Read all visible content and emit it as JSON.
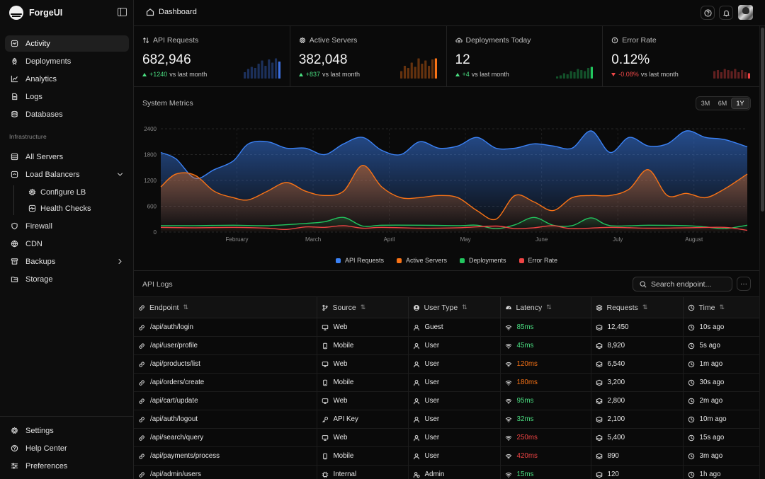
{
  "brand": {
    "name": "ForgeUI"
  },
  "sidebar": {
    "main_items": [
      {
        "label": "Activity",
        "icon": "activity-icon",
        "active": true
      },
      {
        "label": "Deployments",
        "icon": "rocket-icon"
      },
      {
        "label": "Analytics",
        "icon": "chart-icon"
      },
      {
        "label": "Logs",
        "icon": "file-icon"
      },
      {
        "label": "Databases",
        "icon": "database-icon"
      }
    ],
    "section_label": "Infrastructure",
    "infra_items": [
      {
        "label": "All Servers",
        "icon": "server-icon"
      },
      {
        "label": "Load Balancers",
        "icon": "balancer-icon",
        "expanded": true
      },
      {
        "label": "Firewall",
        "icon": "shield-icon"
      },
      {
        "label": "CDN",
        "icon": "globe-icon"
      },
      {
        "label": "Backups",
        "icon": "archive-icon"
      },
      {
        "label": "Storage",
        "icon": "folder-icon"
      }
    ],
    "lb_sub_items": [
      {
        "label": "Configure LB",
        "icon": "gear-icon"
      },
      {
        "label": "Health Checks",
        "icon": "pulse-icon"
      }
    ],
    "bottom_items": [
      {
        "label": "Settings",
        "icon": "gear-icon"
      },
      {
        "label": "Help Center",
        "icon": "help-icon"
      },
      {
        "label": "Preferences",
        "icon": "sliders-icon"
      }
    ]
  },
  "header": {
    "title": "Dashboard"
  },
  "stats": [
    {
      "label": "API Requests",
      "value": "682,946",
      "delta": "+1240",
      "delta_text": "vs last month",
      "trend": "up",
      "color": "#3b6fe0",
      "bars": [
        0.3,
        0.45,
        0.55,
        0.5,
        0.7,
        0.85,
        0.6,
        0.9,
        0.75,
        0.95,
        0.8
      ]
    },
    {
      "label": "Active Servers",
      "value": "382,048",
      "delta": "+837",
      "delta_text": "vs last month",
      "trend": "up",
      "color": "#f97316",
      "bars": [
        0.35,
        0.6,
        0.5,
        0.75,
        0.55,
        0.95,
        0.7,
        0.85,
        0.6,
        0.9,
        0.95
      ]
    },
    {
      "label": "Deployments Today",
      "value": "12",
      "delta": "+4",
      "delta_text": "vs last month",
      "trend": "up",
      "color": "#22c55e",
      "bars": [
        0.1,
        0.15,
        0.25,
        0.2,
        0.35,
        0.3,
        0.45,
        0.4,
        0.35,
        0.5,
        0.55
      ]
    },
    {
      "label": "Error Rate",
      "value": "0.12%",
      "delta": "-0.08%",
      "delta_text": "vs last month",
      "trend": "down",
      "color": "#ef4444",
      "bars": [
        0.35,
        0.4,
        0.3,
        0.45,
        0.4,
        0.35,
        0.45,
        0.3,
        0.4,
        0.3,
        0.25
      ]
    }
  ],
  "metrics": {
    "title": "System Metrics",
    "ranges": [
      "3M",
      "6M",
      "1Y"
    ],
    "active_range": "1Y"
  },
  "chart_data": {
    "type": "area",
    "title": "System Metrics",
    "xlabel": "",
    "ylabel": "",
    "ylim": [
      0,
      2400
    ],
    "yticks": [
      0,
      600,
      1200,
      1800,
      2400
    ],
    "x_tick_labels": [
      "February",
      "March",
      "April",
      "May",
      "June",
      "July",
      "August"
    ],
    "x_range": [
      0,
      7.7
    ],
    "legend_position": "bottom",
    "series": [
      {
        "name": "API Requests",
        "color": "#3b82f6",
        "x": [
          0,
          0.2,
          0.45,
          0.7,
          0.95,
          1.15,
          1.4,
          1.65,
          1.9,
          2.15,
          2.4,
          2.65,
          2.9,
          3.15,
          3.4,
          3.65,
          3.9,
          4.15,
          4.4,
          4.65,
          4.9,
          5.15,
          5.4,
          5.65,
          5.9,
          6.15,
          6.4,
          6.65,
          6.9,
          7.15,
          7.4,
          7.7
        ],
        "y": [
          1850,
          1700,
          1250,
          1450,
          1650,
          2050,
          2100,
          1950,
          1950,
          1800,
          2050,
          2200,
          1900,
          1800,
          2100,
          1950,
          2000,
          2200,
          1950,
          1950,
          2050,
          2000,
          1950,
          2350,
          1850,
          2200,
          2000,
          2050,
          2350,
          2200,
          2150,
          1980
        ]
      },
      {
        "name": "Active Servers",
        "color": "#f97316",
        "x": [
          0,
          0.2,
          0.45,
          0.7,
          0.95,
          1.15,
          1.4,
          1.65,
          1.9,
          2.15,
          2.4,
          2.65,
          2.9,
          3.15,
          3.4,
          3.65,
          3.9,
          4.15,
          4.4,
          4.65,
          4.9,
          5.15,
          5.4,
          5.65,
          5.9,
          6.15,
          6.4,
          6.65,
          6.9,
          7.15,
          7.4,
          7.7
        ],
        "y": [
          1050,
          1350,
          1320,
          950,
          800,
          750,
          950,
          1150,
          950,
          850,
          950,
          1550,
          1050,
          800,
          800,
          850,
          800,
          500,
          300,
          850,
          700,
          500,
          800,
          850,
          850,
          1000,
          1450,
          850,
          900,
          800,
          1000,
          1350
        ]
      },
      {
        "name": "Deployments",
        "color": "#22c55e",
        "x": [
          0,
          0.45,
          0.95,
          1.4,
          1.9,
          2.15,
          2.4,
          2.65,
          2.9,
          3.4,
          3.9,
          4.15,
          4.4,
          4.65,
          4.9,
          5.15,
          5.4,
          5.65,
          5.9,
          6.4,
          6.9,
          7.15,
          7.4,
          7.7
        ],
        "y": [
          150,
          150,
          160,
          150,
          200,
          240,
          340,
          140,
          160,
          160,
          150,
          160,
          80,
          170,
          340,
          160,
          150,
          330,
          150,
          160,
          150,
          120,
          80,
          160
        ]
      },
      {
        "name": "Error Rate",
        "color": "#ef4444",
        "x": [
          0,
          0.45,
          0.95,
          1.4,
          1.65,
          1.9,
          2.15,
          2.4,
          2.65,
          2.9,
          3.4,
          3.9,
          4.4,
          4.65,
          4.9,
          5.15,
          5.4,
          5.9,
          6.4,
          6.9,
          7.4,
          7.7
        ],
        "y": [
          110,
          100,
          110,
          90,
          60,
          120,
          110,
          150,
          90,
          110,
          90,
          100,
          140,
          80,
          100,
          150,
          80,
          110,
          90,
          100,
          110,
          40
        ]
      }
    ]
  },
  "logs": {
    "title": "API Logs",
    "search_placeholder": "Search endpoint...",
    "more_label": "···",
    "columns": [
      "Endpoint",
      "Source",
      "User Type",
      "Latency",
      "Requests",
      "Time"
    ],
    "rows": [
      {
        "endpoint": "/api/auth/login",
        "source": "Web",
        "user_type": "Guest",
        "latency": "85ms",
        "latency_level": "green",
        "requests": "12,450",
        "time": "10s ago"
      },
      {
        "endpoint": "/api/user/profile",
        "source": "Mobile",
        "user_type": "User",
        "latency": "45ms",
        "latency_level": "green",
        "requests": "8,920",
        "time": "5s ago"
      },
      {
        "endpoint": "/api/products/list",
        "source": "Web",
        "user_type": "User",
        "latency": "120ms",
        "latency_level": "orange",
        "requests": "6,540",
        "time": "1m ago"
      },
      {
        "endpoint": "/api/orders/create",
        "source": "Mobile",
        "user_type": "User",
        "latency": "180ms",
        "latency_level": "orange",
        "requests": "3,200",
        "time": "30s ago"
      },
      {
        "endpoint": "/api/cart/update",
        "source": "Web",
        "user_type": "User",
        "latency": "95ms",
        "latency_level": "green",
        "requests": "2,800",
        "time": "2m ago"
      },
      {
        "endpoint": "/api/auth/logout",
        "source": "API Key",
        "user_type": "User",
        "latency": "32ms",
        "latency_level": "green",
        "requests": "2,100",
        "time": "10m ago"
      },
      {
        "endpoint": "/api/search/query",
        "source": "Web",
        "user_type": "User",
        "latency": "250ms",
        "latency_level": "red",
        "requests": "5,400",
        "time": "15s ago"
      },
      {
        "endpoint": "/api/payments/process",
        "source": "Mobile",
        "user_type": "User",
        "latency": "420ms",
        "latency_level": "red",
        "requests": "890",
        "time": "3m ago"
      },
      {
        "endpoint": "/api/admin/users",
        "source": "Internal",
        "user_type": "Admin",
        "latency": "15ms",
        "latency_level": "green",
        "requests": "120",
        "time": "1h ago"
      }
    ]
  }
}
